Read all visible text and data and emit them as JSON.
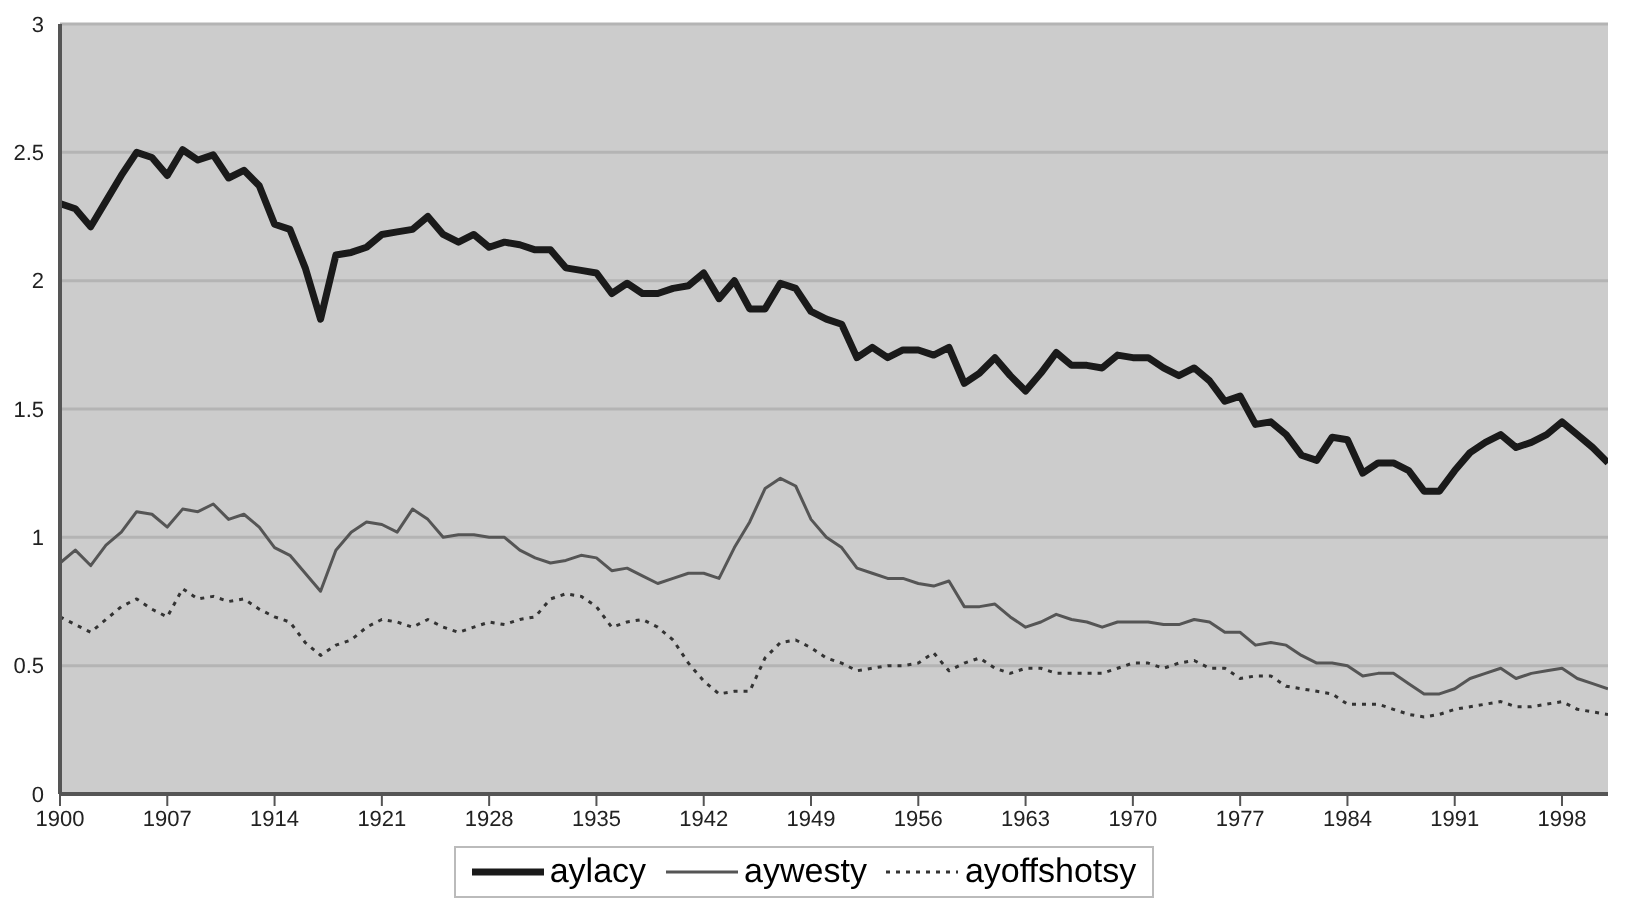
{
  "chart_data": {
    "type": "line",
    "x": [
      1900,
      1901,
      1902,
      1903,
      1904,
      1905,
      1906,
      1907,
      1908,
      1909,
      1910,
      1911,
      1912,
      1913,
      1914,
      1915,
      1916,
      1917,
      1918,
      1919,
      1920,
      1921,
      1922,
      1923,
      1924,
      1925,
      1926,
      1927,
      1928,
      1929,
      1930,
      1931,
      1932,
      1933,
      1934,
      1935,
      1936,
      1937,
      1938,
      1939,
      1940,
      1941,
      1942,
      1943,
      1944,
      1945,
      1946,
      1947,
      1948,
      1949,
      1950,
      1951,
      1952,
      1953,
      1954,
      1955,
      1956,
      1957,
      1958,
      1959,
      1960,
      1961,
      1962,
      1963,
      1964,
      1965,
      1966,
      1967,
      1968,
      1969,
      1970,
      1971,
      1972,
      1973,
      1974,
      1975,
      1976,
      1977,
      1978,
      1979,
      1980,
      1981,
      1982,
      1983,
      1984,
      1985,
      1986,
      1987,
      1988,
      1989,
      1990,
      1991,
      1992,
      1993,
      1994,
      1995,
      1996,
      1997,
      1998,
      1999,
      2000,
      2001
    ],
    "series": [
      {
        "name": "aylacy",
        "color": "#1a1a1a",
        "line_style": "solid",
        "values": [
          2.3,
          2.28,
          2.21,
          2.31,
          2.41,
          2.5,
          2.48,
          2.41,
          2.51,
          2.47,
          2.49,
          2.4,
          2.43,
          2.37,
          2.22,
          2.2,
          2.05,
          1.85,
          2.1,
          2.11,
          2.13,
          2.18,
          2.19,
          2.2,
          2.25,
          2.18,
          2.15,
          2.18,
          2.13,
          2.15,
          2.14,
          2.12,
          2.12,
          2.05,
          2.04,
          2.03,
          1.95,
          1.99,
          1.95,
          1.95,
          1.97,
          1.98,
          2.03,
          1.93,
          2.0,
          1.89,
          1.89,
          1.99,
          1.97,
          1.88,
          1.85,
          1.83,
          1.7,
          1.74,
          1.7,
          1.73,
          1.73,
          1.71,
          1.74,
          1.6,
          1.64,
          1.7,
          1.63,
          1.57,
          1.64,
          1.72,
          1.67,
          1.67,
          1.66,
          1.71,
          1.7,
          1.7,
          1.66,
          1.63,
          1.66,
          1.61,
          1.53,
          1.55,
          1.44,
          1.45,
          1.4,
          1.32,
          1.3,
          1.39,
          1.38,
          1.25,
          1.29,
          1.29,
          1.26,
          1.18,
          1.18,
          1.26,
          1.33,
          1.37,
          1.4,
          1.35,
          1.37,
          1.4,
          1.45,
          1.4,
          1.35,
          1.29
        ]
      },
      {
        "name": "aywesty",
        "color": "#555555",
        "line_style": "solid",
        "values": [
          0.9,
          0.95,
          0.89,
          0.97,
          1.02,
          1.1,
          1.09,
          1.04,
          1.11,
          1.1,
          1.13,
          1.07,
          1.09,
          1.04,
          0.96,
          0.93,
          0.86,
          0.79,
          0.95,
          1.02,
          1.06,
          1.05,
          1.02,
          1.11,
          1.07,
          1.0,
          1.01,
          1.01,
          1.0,
          1.0,
          0.95,
          0.92,
          0.9,
          0.91,
          0.93,
          0.92,
          0.87,
          0.88,
          0.85,
          0.82,
          0.84,
          0.86,
          0.86,
          0.84,
          0.96,
          1.06,
          1.19,
          1.23,
          1.2,
          1.07,
          1.0,
          0.96,
          0.88,
          0.86,
          0.84,
          0.84,
          0.82,
          0.81,
          0.83,
          0.73,
          0.73,
          0.74,
          0.69,
          0.65,
          0.67,
          0.7,
          0.68,
          0.67,
          0.65,
          0.67,
          0.67,
          0.67,
          0.66,
          0.66,
          0.68,
          0.67,
          0.63,
          0.63,
          0.58,
          0.59,
          0.58,
          0.54,
          0.51,
          0.51,
          0.5,
          0.46,
          0.47,
          0.47,
          0.43,
          0.39,
          0.39,
          0.41,
          0.45,
          0.47,
          0.49,
          0.45,
          0.47,
          0.48,
          0.49,
          0.45,
          0.43,
          0.41
        ]
      },
      {
        "name": "ayoffshotsy",
        "color": "#333333",
        "line_style": "dotted",
        "values": [
          0.69,
          0.66,
          0.63,
          0.68,
          0.73,
          0.76,
          0.72,
          0.69,
          0.8,
          0.76,
          0.77,
          0.75,
          0.76,
          0.72,
          0.69,
          0.67,
          0.59,
          0.54,
          0.58,
          0.6,
          0.65,
          0.68,
          0.67,
          0.65,
          0.68,
          0.65,
          0.63,
          0.65,
          0.67,
          0.66,
          0.68,
          0.69,
          0.76,
          0.78,
          0.77,
          0.73,
          0.65,
          0.67,
          0.68,
          0.65,
          0.6,
          0.51,
          0.44,
          0.39,
          0.4,
          0.4,
          0.53,
          0.59,
          0.6,
          0.57,
          0.53,
          0.51,
          0.48,
          0.49,
          0.5,
          0.5,
          0.51,
          0.55,
          0.48,
          0.51,
          0.53,
          0.49,
          0.47,
          0.49,
          0.49,
          0.47,
          0.47,
          0.47,
          0.47,
          0.49,
          0.51,
          0.51,
          0.49,
          0.51,
          0.52,
          0.49,
          0.49,
          0.45,
          0.46,
          0.46,
          0.42,
          0.41,
          0.4,
          0.39,
          0.35,
          0.35,
          0.35,
          0.33,
          0.31,
          0.3,
          0.31,
          0.33,
          0.34,
          0.35,
          0.36,
          0.34,
          0.34,
          0.35,
          0.36,
          0.33,
          0.32,
          0.31
        ]
      }
    ],
    "xlim": [
      1900,
      2001
    ],
    "xticks": [
      1900,
      1907,
      1914,
      1921,
      1928,
      1935,
      1942,
      1949,
      1956,
      1963,
      1970,
      1977,
      1984,
      1991,
      1998
    ],
    "ylim": [
      0,
      3
    ],
    "yticks": [
      0,
      0.5,
      1,
      1.5,
      2,
      2.5,
      3
    ],
    "grid": "y",
    "legend": "bottom",
    "marker": "none"
  }
}
